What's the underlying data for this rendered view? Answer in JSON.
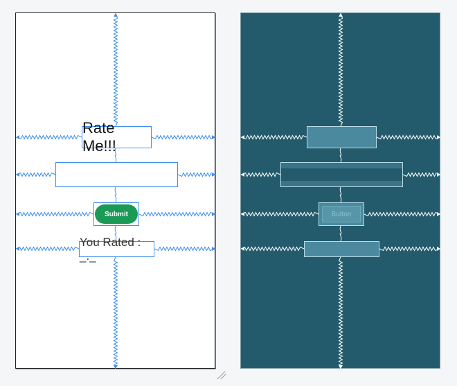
{
  "design": {
    "title": "Rate Me!!!",
    "input_value": "",
    "submit_label": "Submit",
    "result_text": "You Rated : _._"
  },
  "blueprint": {
    "button_label": "Button"
  },
  "colors": {
    "constraint_design": "#3d8ef0",
    "constraint_blueprint": "#ffffff",
    "blueprint_bg": "#235b6c",
    "submit_green": "#1a9a54"
  }
}
